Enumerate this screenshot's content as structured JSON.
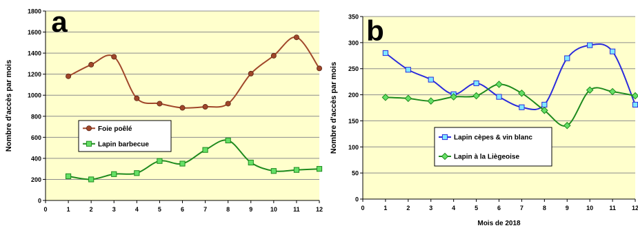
{
  "chart_data": [
    {
      "type": "line",
      "panel_letter": "a",
      "xlabel": "",
      "ylabel": "Nombre d'accès par mois",
      "x": [
        1,
        2,
        3,
        4,
        5,
        6,
        7,
        8,
        9,
        10,
        11,
        12
      ],
      "x_ticks": [
        0,
        1,
        2,
        3,
        4,
        5,
        6,
        7,
        8,
        9,
        10,
        11,
        12
      ],
      "xlim": [
        0,
        12
      ],
      "ylim": [
        0,
        1800
      ],
      "y_ticks": [
        0,
        200,
        400,
        600,
        800,
        1000,
        1200,
        1400,
        1600,
        1800
      ],
      "grid": "horizontal",
      "plot_background": "#FFFFCC",
      "legend_position": "bottom-left",
      "series": [
        {
          "name": "Foie poêlé",
          "color": "#A0462A",
          "marker": "circle",
          "values": [
            1180,
            1290,
            1365,
            970,
            920,
            880,
            890,
            920,
            1205,
            1375,
            1550,
            1255
          ]
        },
        {
          "name": "Lapin barbecue",
          "color": "#1E8A1E",
          "marker": "square",
          "marker_fill": "#66E066",
          "values": [
            230,
            200,
            250,
            260,
            375,
            350,
            480,
            570,
            360,
            280,
            290,
            300
          ]
        }
      ]
    },
    {
      "type": "line",
      "panel_letter": "b",
      "xlabel": "Mois de 2018",
      "ylabel": "Nombre d'accès par mois",
      "x": [
        1,
        2,
        3,
        4,
        5,
        6,
        7,
        8,
        9,
        10,
        11,
        12
      ],
      "x_ticks": [
        0,
        1,
        2,
        3,
        4,
        5,
        6,
        7,
        8,
        9,
        10,
        11,
        12
      ],
      "xlim": [
        0,
        12
      ],
      "ylim": [
        0,
        350
      ],
      "y_ticks": [
        0,
        50,
        100,
        150,
        200,
        250,
        300,
        350
      ],
      "grid": "horizontal",
      "plot_background": "#FFFFCC",
      "legend_position": "bottom-center",
      "series": [
        {
          "name": "Lapin cèpes & vin blanc",
          "color": "#2A2ADC",
          "marker": "square",
          "marker_fill": "#7FE8FF",
          "values": [
            280,
            248,
            229,
            201,
            222,
            196,
            176,
            181,
            270,
            295,
            283,
            181
          ]
        },
        {
          "name": "Lapin à la Liègeoise",
          "color": "#1E8A1E",
          "marker": "diamond",
          "marker_fill": "#66E066",
          "values": [
            195,
            193,
            188,
            196,
            198,
            220,
            203,
            170,
            141,
            209,
            206,
            198
          ]
        }
      ]
    }
  ]
}
